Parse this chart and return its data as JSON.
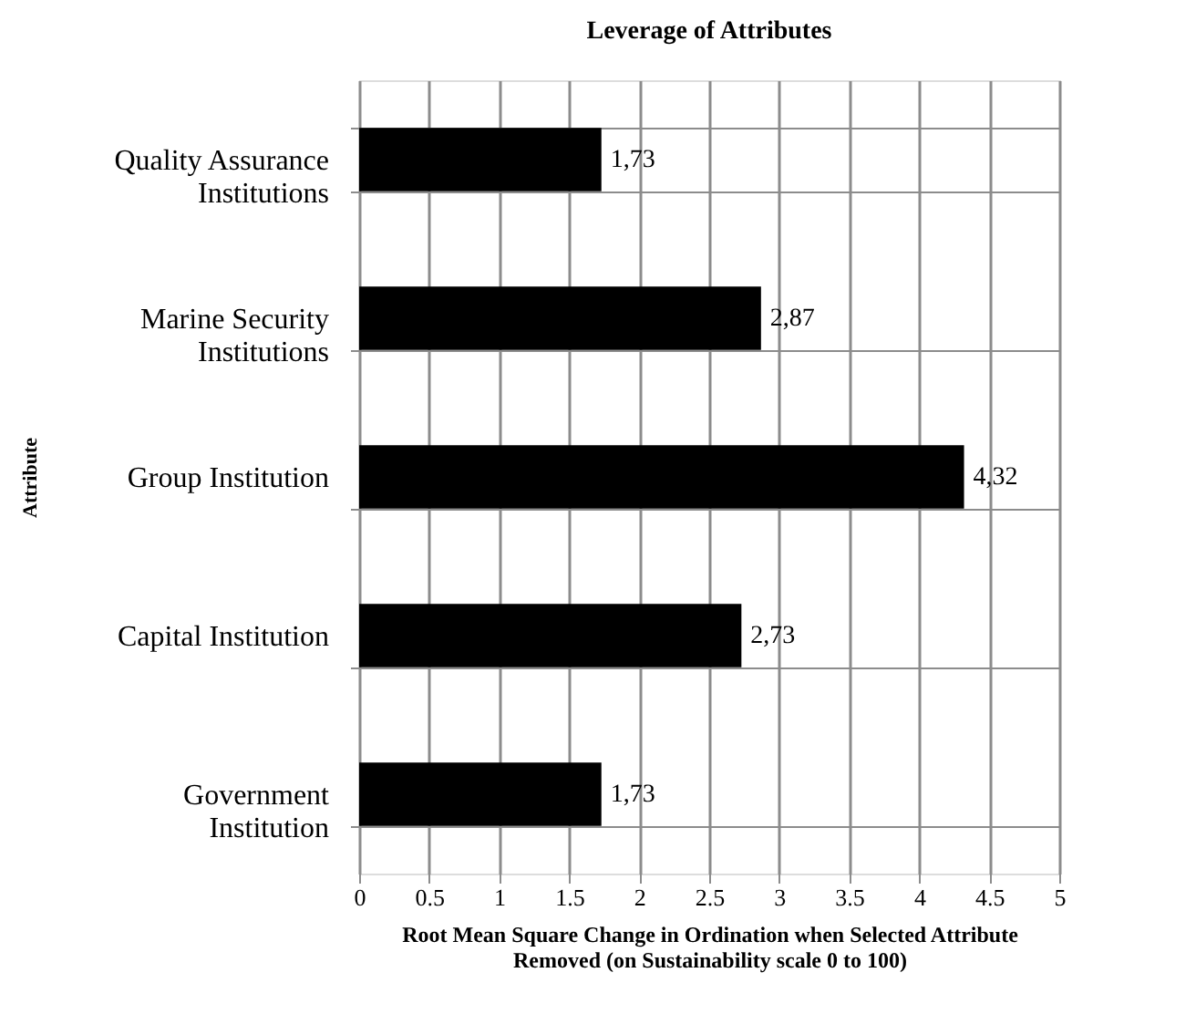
{
  "chart_data": {
    "type": "bar",
    "orientation": "horizontal",
    "title": "Leverage of Attributes",
    "xlabel": "Root Mean Square Change in Ordination when Selected Attribute Removed (on Sustainability scale 0 to 100)",
    "ylabel": "Attribute",
    "categories": [
      "Quality Assurance Institutions",
      "Marine Security Institutions",
      "Group Institution",
      "Capital Institution",
      "Government Institution"
    ],
    "values": [
      1.73,
      2.87,
      4.32,
      2.73,
      1.73
    ],
    "value_labels": [
      "1,73",
      "2,87",
      "4,32",
      "2,73",
      "1,73"
    ],
    "color": "#000000",
    "xlim": [
      0,
      5
    ],
    "xticks": [
      0,
      0.5,
      1,
      1.5,
      2,
      2.5,
      3,
      3.5,
      4,
      4.5,
      5
    ],
    "grid": true
  }
}
